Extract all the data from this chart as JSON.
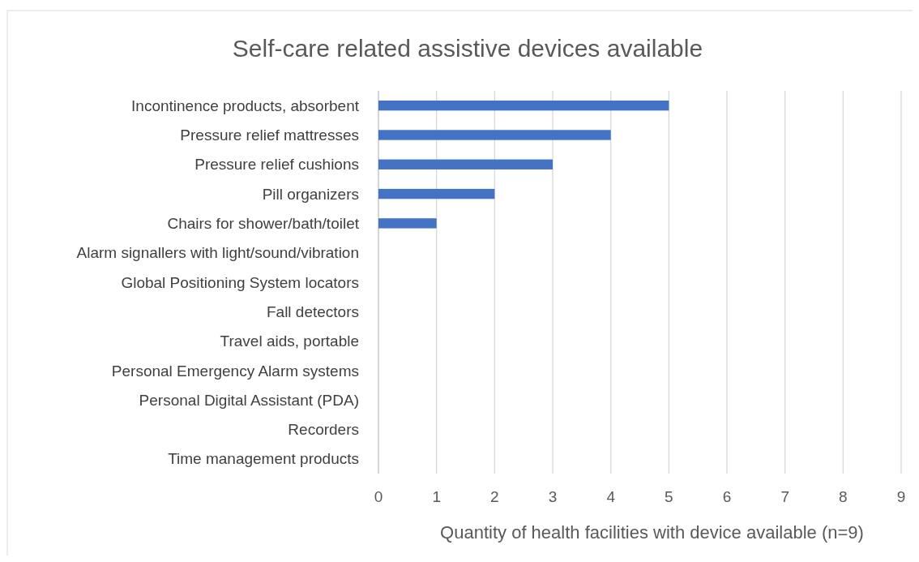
{
  "chart_data": {
    "type": "bar",
    "orientation": "horizontal",
    "title": "Self-care related assistive devices available",
    "xlabel": "Quantity of health facilities with device available (n=9)",
    "categories": [
      "Incontinence products, absorbent",
      "Pressure relief mattresses",
      "Pressure relief cushions",
      "Pill organizers",
      "Chairs for shower/bath/toilet",
      "Alarm signallers with light/sound/vibration",
      "Global Positioning System locators",
      "Fall detectors",
      "Travel aids, portable",
      "Personal Emergency Alarm systems",
      "Personal Digital Assistant (PDA)",
      "Recorders",
      "Time management products"
    ],
    "values": [
      5,
      4,
      3,
      2,
      1,
      0,
      0,
      0,
      0,
      0,
      0,
      0,
      0
    ],
    "color": "#4472c4",
    "xlim": [
      0,
      9
    ],
    "xticks": [
      0,
      1,
      2,
      3,
      4,
      5,
      6,
      7,
      8,
      9
    ],
    "grid": "x"
  }
}
